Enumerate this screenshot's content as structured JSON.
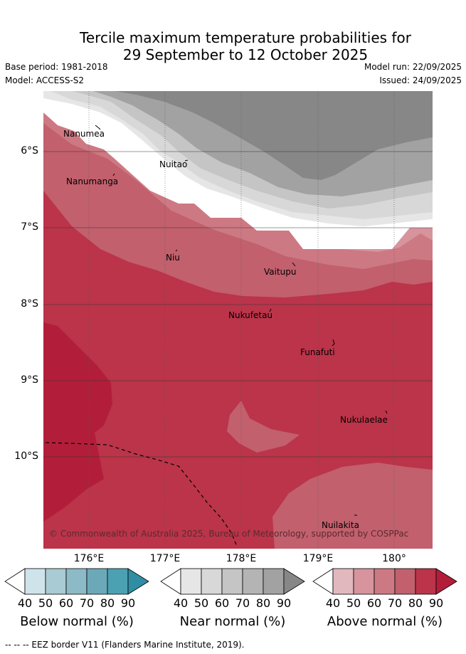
{
  "title_line1": "Tercile maximum temperature probabilities for",
  "title_line2": "29 September to 12 October 2025",
  "base_period": "Base period: 1981-2018",
  "model": "Model: ACCESS-S2",
  "model_run": "Model run: 22/09/2025",
  "issued": "Issued: 24/09/2025",
  "copyright": "© Commonwealth of Australia 2025, Bureau of Meteorology, supported by COSPPac",
  "footer_note": "--  --  -- EEZ border V11 (Flanders Marine Institute, 2019).",
  "lon_ticks": [
    "176°E",
    "177°E",
    "178°E",
    "179°E",
    "180°"
  ],
  "lat_ticks": [
    "6°S",
    "7°S",
    "8°S",
    "9°S",
    "10°S"
  ],
  "places": {
    "nanumea": "Nanumea",
    "nuitao": "Nuitao",
    "nanumanga": "Nanumanga",
    "niu": "Niu",
    "vaitupu": "Vaitupu",
    "nukufetau": "Nukufetau",
    "funafuti": "Funafuti",
    "nukulaelae": "Nukulaelae",
    "nuilakita": "Nuilakita"
  },
  "colorbars": {
    "below": {
      "label": "Below normal (%)",
      "colors": [
        "#cfe4ea",
        "#a9cbd3",
        "#8cbac6",
        "#6ba9b9",
        "#4ba1b2",
        "#2f8ea3"
      ]
    },
    "near": {
      "label": "Near normal (%)",
      "colors": [
        "#e6e6e6",
        "#d8d8d8",
        "#c5c5c5",
        "#b4b4b4",
        "#a2a2a2",
        "#878787"
      ]
    },
    "above": {
      "label": "Above normal (%)",
      "colors": [
        "#e2b8bf",
        "#d7949d",
        "#cd7983",
        "#c2606d",
        "#bb3449",
        "#b21e3a"
      ]
    },
    "ticks": [
      "40",
      "50",
      "60",
      "70",
      "80",
      "90"
    ]
  }
}
